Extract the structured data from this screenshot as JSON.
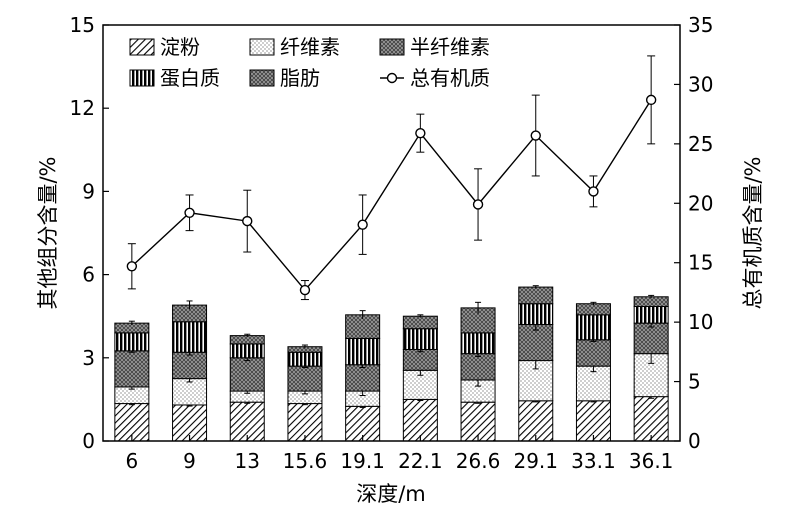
{
  "chart_data": {
    "type": "bar",
    "stacked": true,
    "categories": [
      "6",
      "9",
      "13",
      "15.6",
      "19.1",
      "22.1",
      "26.6",
      "29.1",
      "33.1",
      "36.1"
    ],
    "xlabel": "深度/m",
    "ylabel": "其他组分含量/%",
    "y2label": "总有机质含量/%",
    "ylim": [
      0,
      15
    ],
    "yticks": [
      0,
      3,
      6,
      9,
      12,
      15
    ],
    "y2lim": [
      0,
      35
    ],
    "y2ticks": [
      0,
      5,
      10,
      15,
      20,
      25,
      30,
      35
    ],
    "legend_position": "top-left",
    "grid": false,
    "series": [
      {
        "name": "淀粉",
        "pattern": "diag",
        "values": [
          1.35,
          1.3,
          1.4,
          1.35,
          1.25,
          1.5,
          1.4,
          1.45,
          1.45,
          1.6
        ]
      },
      {
        "name": "纤维素",
        "pattern": "dots",
        "values": [
          0.6,
          0.95,
          0.4,
          0.45,
          0.55,
          1.05,
          0.8,
          1.45,
          1.25,
          1.55
        ]
      },
      {
        "name": "半纤维素",
        "pattern": "cross",
        "values": [
          1.3,
          0.95,
          1.2,
          0.9,
          0.95,
          0.75,
          0.95,
          1.3,
          0.95,
          1.1
        ]
      },
      {
        "name": "蛋白质",
        "pattern": "vlines",
        "values": [
          0.65,
          1.1,
          0.5,
          0.5,
          0.95,
          0.75,
          0.75,
          0.75,
          0.9,
          0.6
        ]
      },
      {
        "name": "脂肪",
        "pattern": "cross",
        "values": [
          0.35,
          0.6,
          0.3,
          0.2,
          0.85,
          0.45,
          0.9,
          0.6,
          0.4,
          0.35
        ]
      }
    ],
    "bar_error_total": [
      0.07,
      0.15,
      0.05,
      0.06,
      0.15,
      0.05,
      0.2,
      0.05,
      0.05,
      0.05
    ],
    "line": {
      "name": "总有机质",
      "axis": "right",
      "values": [
        14.7,
        19.2,
        18.5,
        12.7,
        18.2,
        25.9,
        19.9,
        25.7,
        21.0,
        28.7
      ],
      "errors": [
        1.9,
        1.5,
        2.6,
        0.8,
        2.5,
        1.6,
        3.0,
        3.4,
        1.3,
        3.7
      ]
    },
    "segment_errors": {
      "淀粉": [
        0.04,
        0.04,
        0.04,
        0.04,
        0.04,
        0.04,
        0.04,
        0.04,
        0.04,
        0.06
      ],
      "纤维素": [
        0.08,
        0.12,
        0.08,
        0.1,
        0.16,
        0.18,
        0.22,
        0.3,
        0.2,
        0.35
      ],
      "半纤维素": [
        0.05,
        0.1,
        0.1,
        0.05,
        0.1,
        0.08,
        0.1,
        0.2,
        0.06,
        0.14
      ]
    }
  }
}
